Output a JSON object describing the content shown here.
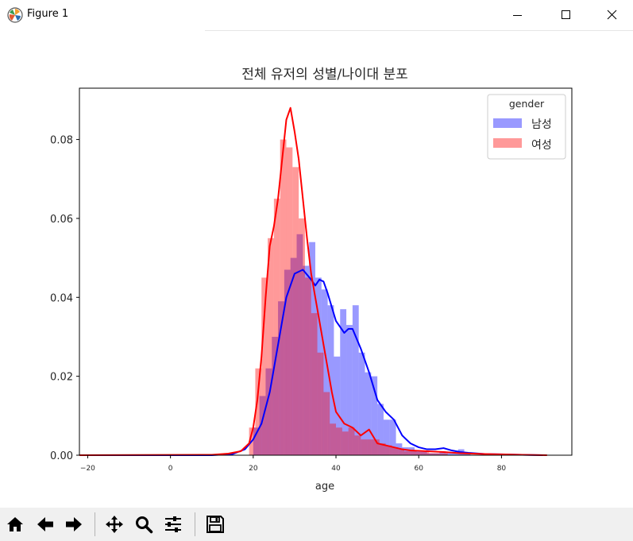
{
  "window": {
    "title": "Figure 1",
    "icons": [
      "matplotlib-logo-icon",
      "minimize-icon",
      "maximize-icon",
      "close-icon"
    ]
  },
  "toolbar": {
    "buttons": [
      "home-icon",
      "back-icon",
      "forward-icon",
      "pan-icon",
      "zoom-icon",
      "configure-subplots-icon",
      "save-icon"
    ]
  },
  "chart_data": {
    "type": "bar",
    "title": "전체 유저의 성별/나이대 분포",
    "xlabel": "age",
    "ylabel": "",
    "xlim": [
      -22,
      97
    ],
    "ylim": [
      0,
      0.093
    ],
    "xticks": [
      -20,
      0,
      20,
      40,
      60,
      80
    ],
    "xtick_labels": [
      "−20",
      "0",
      "20",
      "40",
      "60",
      "80"
    ],
    "yticks": [
      0.0,
      0.02,
      0.04,
      0.06,
      0.08
    ],
    "ytick_labels": [
      "0.00",
      "0.02",
      "0.04",
      "0.06",
      "0.08"
    ],
    "grid": false,
    "legend": {
      "title": "gender",
      "placement": "top-right"
    },
    "series": [
      {
        "name": "남성",
        "color": "#0000ff",
        "kind": "histogram+kde",
        "bin_width": 1.5,
        "bins_left": [
          20,
          21.5,
          23,
          24.5,
          26,
          27.5,
          29,
          30.5,
          32,
          33.5,
          35,
          36.5,
          38,
          39.5,
          41,
          42.5,
          44,
          45.5,
          47,
          48.5,
          50,
          51.5,
          53,
          54.5,
          56,
          57.5,
          59,
          60.5,
          62,
          63.5,
          65,
          66.5,
          68,
          69.5,
          71
        ],
        "densities": [
          0.007,
          0.015,
          0.022,
          0.03,
          0.039,
          0.047,
          0.05,
          0.056,
          0.048,
          0.054,
          0.045,
          0.042,
          0.038,
          0.025,
          0.037,
          0.033,
          0.038,
          0.026,
          0.021,
          0.02,
          0.013,
          0.009,
          0.009,
          0.003,
          0.002,
          0.002,
          0.001,
          0.001,
          0.0005,
          0.0005,
          0.001,
          0.0005,
          0.0005,
          0.0015,
          0.0005
        ],
        "kde_x": [
          -22,
          10,
          15,
          18,
          20,
          22,
          24,
          26,
          28,
          30,
          32,
          34,
          35,
          36,
          37,
          38,
          40,
          42,
          43,
          44,
          46,
          48,
          50,
          52,
          54,
          56,
          58,
          60,
          62,
          64,
          66,
          68,
          70,
          72,
          76,
          85,
          90
        ],
        "kde_y": [
          0.0,
          0.0,
          0.0003,
          0.0015,
          0.004,
          0.008,
          0.016,
          0.028,
          0.04,
          0.046,
          0.047,
          0.0445,
          0.043,
          0.0445,
          0.044,
          0.041,
          0.034,
          0.031,
          0.032,
          0.032,
          0.027,
          0.021,
          0.014,
          0.011,
          0.009,
          0.005,
          0.003,
          0.002,
          0.0015,
          0.0015,
          0.0018,
          0.0012,
          0.0008,
          0.0006,
          0.0003,
          0.0001,
          0.0
        ]
      },
      {
        "name": "여성",
        "color": "#ff0000",
        "kind": "histogram+kde",
        "bin_width": 1.5,
        "bins_left": [
          19,
          20.5,
          22,
          23.5,
          25,
          26.5,
          28,
          29.5,
          31,
          32.5,
          34,
          35.5,
          37,
          38.5,
          40,
          41.5,
          43,
          44.5,
          46,
          47.5,
          49,
          50.5,
          52,
          53.5,
          55,
          56.5,
          58,
          59.5,
          61,
          62.5,
          64,
          65.5
        ],
        "densities": [
          0.007,
          0.022,
          0.045,
          0.055,
          0.065,
          0.08,
          0.078,
          0.073,
          0.06,
          0.045,
          0.036,
          0.026,
          0.016,
          0.008,
          0.007,
          0.006,
          0.007,
          0.005,
          0.004,
          0.004,
          0.004,
          0.003,
          0.0025,
          0.002,
          0.0015,
          0.001,
          0.001,
          0.0008,
          0.0008,
          0.0005,
          0.0005,
          0.0005
        ],
        "kde_x": [
          -22,
          10,
          14,
          17,
          19,
          20,
          21,
          22,
          23,
          24,
          25,
          26,
          27,
          28,
          29,
          30,
          31,
          32,
          33,
          34,
          35,
          36,
          37,
          38,
          39,
          40,
          42,
          44,
          46,
          48,
          50,
          52,
          54,
          56,
          58,
          62,
          66,
          70,
          76,
          85,
          91
        ],
        "kde_y": [
          0.0,
          0.0001,
          0.0004,
          0.001,
          0.003,
          0.007,
          0.014,
          0.025,
          0.04,
          0.053,
          0.058,
          0.065,
          0.075,
          0.085,
          0.088,
          0.082,
          0.075,
          0.065,
          0.055,
          0.046,
          0.04,
          0.034,
          0.028,
          0.022,
          0.016,
          0.011,
          0.008,
          0.007,
          0.005,
          0.0065,
          0.003,
          0.0025,
          0.002,
          0.0015,
          0.0012,
          0.001,
          0.0008,
          0.0005,
          0.0003,
          0.0001,
          0.0
        ]
      }
    ]
  }
}
